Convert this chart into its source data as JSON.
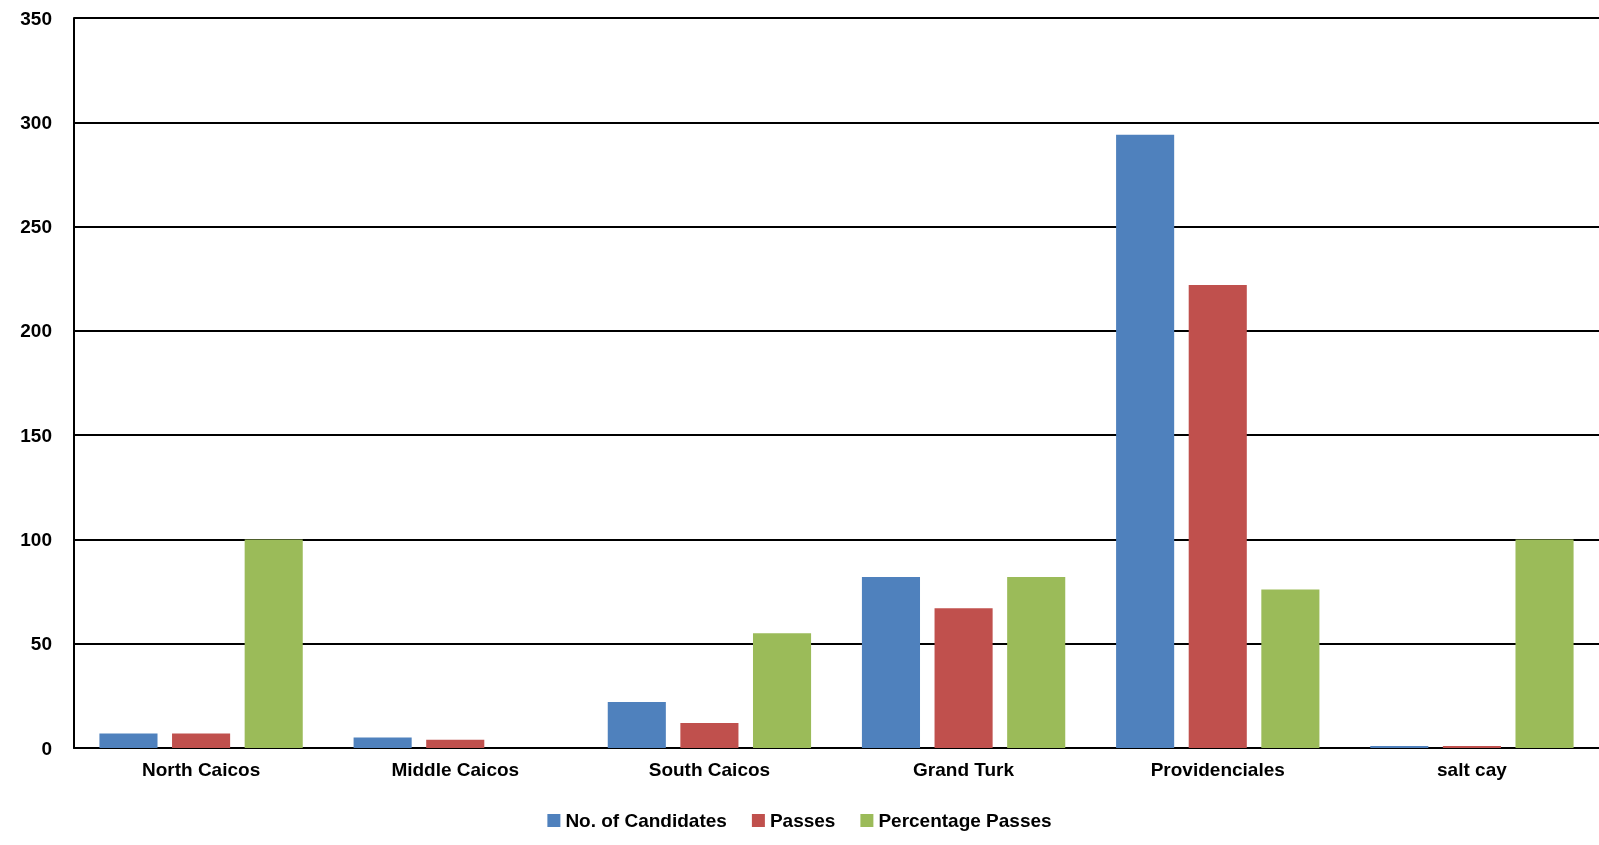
{
  "chart_data": {
    "type": "bar",
    "categories": [
      "North Caicos",
      "Middle Caicos",
      "South Caicos",
      "Grand Turk",
      "Providenciales",
      "salt cay"
    ],
    "series": [
      {
        "name": "No. of Candidates",
        "color": "#4f81bd",
        "values": [
          7,
          5,
          22,
          82,
          294,
          1
        ]
      },
      {
        "name": "Passes",
        "color": "#c0504d",
        "values": [
          7,
          4,
          12,
          67,
          222,
          1
        ]
      },
      {
        "name": "Percentage Passes",
        "color": "#9bbb59",
        "values": [
          100,
          0,
          55,
          82,
          76,
          100
        ]
      }
    ],
    "ylim": [
      0,
      350
    ],
    "yticks": [
      0,
      50,
      100,
      150,
      200,
      250,
      300,
      350
    ],
    "grid": "y",
    "legend": "bottom"
  }
}
